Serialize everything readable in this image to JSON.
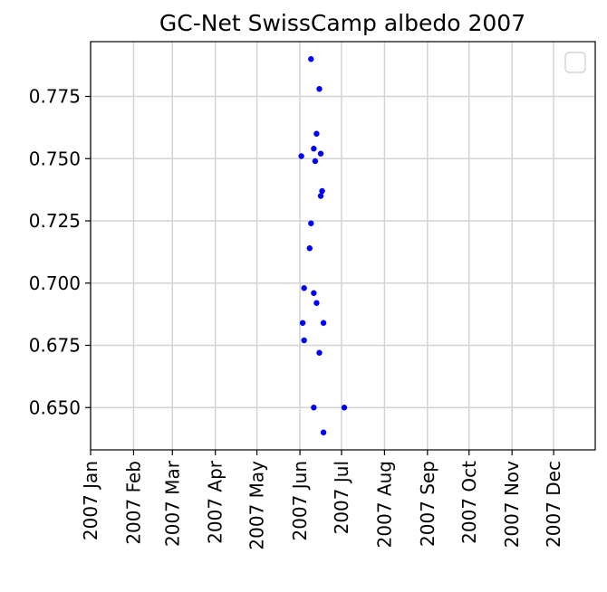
{
  "chart_data": {
    "type": "scatter",
    "title": "GC-Net SwissCamp albedo 2007",
    "xlabel": "",
    "ylabel": "",
    "xlim": [
      "2007-01-01",
      "2007-12-31"
    ],
    "ylim": [
      0.633,
      0.797
    ],
    "xticks": [
      {
        "date": "2007-01-01",
        "label": "2007 Jan"
      },
      {
        "date": "2007-02-01",
        "label": "2007 Feb"
      },
      {
        "date": "2007-03-01",
        "label": "2007 Mar"
      },
      {
        "date": "2007-04-01",
        "label": "2007 Apr"
      },
      {
        "date": "2007-05-01",
        "label": "2007 May"
      },
      {
        "date": "2007-06-01",
        "label": "2007 Jun"
      },
      {
        "date": "2007-07-01",
        "label": "2007 Jul"
      },
      {
        "date": "2007-08-01",
        "label": "2007 Aug"
      },
      {
        "date": "2007-09-01",
        "label": "2007 Sep"
      },
      {
        "date": "2007-10-01",
        "label": "2007 Oct"
      },
      {
        "date": "2007-11-01",
        "label": "2007 Nov"
      },
      {
        "date": "2007-12-01",
        "label": "2007 Dec"
      }
    ],
    "yticks": [
      {
        "value": 0.65,
        "label": "0.650"
      },
      {
        "value": 0.675,
        "label": "0.675"
      },
      {
        "value": 0.7,
        "label": "0.700"
      },
      {
        "value": 0.725,
        "label": "0.725"
      },
      {
        "value": 0.75,
        "label": "0.750"
      },
      {
        "value": 0.775,
        "label": "0.775"
      }
    ],
    "grid": true,
    "legend": {
      "placement": "upper-right",
      "entries": []
    },
    "marker_color": "#0000ff",
    "series": [
      {
        "x": [
          "2007-06-09",
          "2007-06-15",
          "2007-06-13",
          "2007-06-11",
          "2007-06-16",
          "2007-06-02",
          "2007-06-12",
          "2007-06-17",
          "2007-06-16",
          "2007-06-09",
          "2007-06-08",
          "2007-06-04",
          "2007-06-11",
          "2007-06-13",
          "2007-06-03",
          "2007-06-18",
          "2007-06-04",
          "2007-06-15",
          "2007-06-11",
          "2007-07-03",
          "2007-06-18"
        ],
        "y": [
          0.79,
          0.778,
          0.76,
          0.754,
          0.752,
          0.751,
          0.749,
          0.737,
          0.735,
          0.724,
          0.714,
          0.698,
          0.696,
          0.692,
          0.684,
          0.684,
          0.677,
          0.672,
          0.65,
          0.65,
          0.64
        ]
      }
    ]
  }
}
